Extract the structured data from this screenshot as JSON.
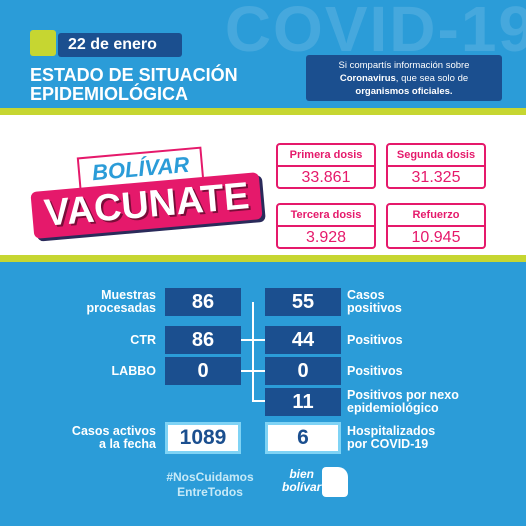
{
  "watermark": "COVID-19",
  "header": {
    "date": "22 de enero",
    "title": [
      "ESTADO DE SITUACIÓN",
      "EPIDEMIOLÓGICA"
    ],
    "notice": {
      "line1": "Si compartís información sobre",
      "bold1": "Coronavirus",
      "line2": ", que sea solo de",
      "bold2": "organismos oficiales."
    }
  },
  "campaign": {
    "town": "BOLÍVAR",
    "slogan": "VACUNATE"
  },
  "vaccination": [
    {
      "label": "Primera dosis",
      "value": "33.861"
    },
    {
      "label": "Segunda dosis",
      "value": "31.325"
    },
    {
      "label": "Tercera dosis",
      "value": "3.928"
    },
    {
      "label": "Refuerzo",
      "value": "10.945"
    }
  ],
  "stats": {
    "rows": [
      {
        "left_label": [
          "Muestras",
          "procesadas"
        ],
        "left_value": "86",
        "right_value": "55",
        "right_label": [
          "Casos",
          "positivos"
        ]
      },
      {
        "left_label": [
          "CTR"
        ],
        "left_value": "86",
        "right_value": "44",
        "right_label": [
          "Positivos"
        ]
      },
      {
        "left_label": [
          "LABBO"
        ],
        "left_value": "0",
        "right_value": "0",
        "right_label": [
          "Positivos"
        ]
      },
      {
        "left_label": [],
        "left_value": null,
        "right_value": "11",
        "right_label": [
          "Positivos por nexo",
          "epidemiológico"
        ]
      }
    ],
    "active": {
      "left_label": [
        "Casos activos",
        "a la fecha"
      ],
      "left_value": "1089",
      "right_value": "6",
      "right_label": [
        "Hospitalizados",
        "por COVID-19"
      ]
    }
  },
  "footer": {
    "hashtag": [
      "#NosCuidamos",
      "EntreTodos"
    ],
    "logo": [
      "bien",
      "bolívar"
    ]
  }
}
